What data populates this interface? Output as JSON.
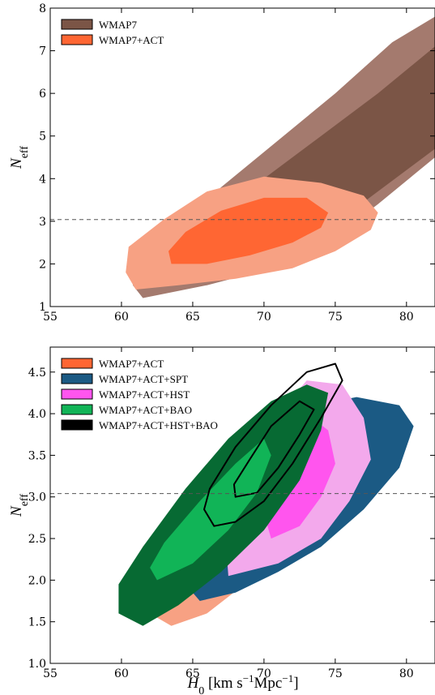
{
  "chart_data": [
    {
      "type": "contour",
      "xlabel": "",
      "ylabel": "N_eff",
      "xlim": [
        55,
        82
      ],
      "ylim": [
        1,
        8
      ],
      "x_ticks": [
        55,
        60,
        65,
        70,
        75,
        80
      ],
      "y_ticks": [
        1,
        2,
        3,
        4,
        5,
        6,
        7,
        8
      ],
      "reference_line": {
        "y": 3.04,
        "style": "dashed"
      },
      "legend": {
        "placement": "top-left"
      },
      "series": [
        {
          "name": "WMAP7",
          "color_inner": "#7b5546",
          "color_outer": "#a47a6e",
          "outer": [
            [
              61.5,
              1.2
            ],
            [
              63.0,
              1.3
            ],
            [
              66.0,
              1.5
            ],
            [
              70.0,
              1.85
            ],
            [
              74.0,
              2.4
            ],
            [
              78.0,
              3.4
            ],
            [
              82.0,
              4.5
            ],
            [
              82.0,
              7.8
            ],
            [
              79.0,
              7.2
            ],
            [
              75.0,
              6.0
            ],
            [
              71.0,
              4.9
            ],
            [
              67.0,
              3.8
            ],
            [
              63.5,
              2.8
            ],
            [
              61.0,
              1.9
            ],
            [
              60.8,
              1.5
            ]
          ],
          "inner": [
            [
              64.0,
              1.6
            ],
            [
              68.0,
              1.9
            ],
            [
              72.0,
              2.4
            ],
            [
              76.0,
              3.2
            ],
            [
              80.0,
              4.2
            ],
            [
              82.0,
              4.7
            ],
            [
              82.0,
              7.1
            ],
            [
              78.0,
              6.0
            ],
            [
              74.0,
              5.0
            ],
            [
              70.0,
              4.0
            ],
            [
              66.0,
              3.0
            ],
            [
              63.5,
              2.1
            ]
          ]
        },
        {
          "name": "WMAP7+ACT",
          "color_inner": "#ff6633",
          "color_outer": "#f7a183",
          "outer": [
            [
              61.0,
              1.4
            ],
            [
              64.0,
              1.5
            ],
            [
              68.0,
              1.65
            ],
            [
              72.0,
              1.9
            ],
            [
              75.0,
              2.3
            ],
            [
              77.5,
              2.8
            ],
            [
              78.0,
              3.2
            ],
            [
              77.0,
              3.6
            ],
            [
              74.0,
              3.9
            ],
            [
              70.0,
              4.05
            ],
            [
              66.0,
              3.7
            ],
            [
              63.0,
              3.05
            ],
            [
              60.5,
              2.4
            ],
            [
              60.3,
              1.8
            ]
          ],
          "inner": [
            [
              63.5,
              2.0
            ],
            [
              66.0,
              2.0
            ],
            [
              69.0,
              2.2
            ],
            [
              72.0,
              2.5
            ],
            [
              74.0,
              2.85
            ],
            [
              74.5,
              3.2
            ],
            [
              73.0,
              3.55
            ],
            [
              70.0,
              3.55
            ],
            [
              67.0,
              3.25
            ],
            [
              64.5,
              2.75
            ],
            [
              63.3,
              2.3
            ]
          ]
        }
      ]
    },
    {
      "type": "contour",
      "xlabel": "H_0 [km s^-1 Mpc^-1]",
      "ylabel": "N_eff",
      "xlim": [
        55,
        82
      ],
      "ylim": [
        1.0,
        4.8
      ],
      "x_ticks": [
        55,
        60,
        65,
        70,
        75,
        80
      ],
      "y_ticks": [
        1.0,
        1.5,
        2.0,
        2.5,
        3.0,
        3.5,
        4.0,
        4.5
      ],
      "reference_line": {
        "y": 3.04,
        "style": "dashed"
      },
      "legend": {
        "placement": "top-left"
      },
      "series": [
        {
          "name": "WMAP7+ACT",
          "color_inner": "#ff6633",
          "color_outer": "#f7a183",
          "outer": [
            [
              61.0,
              1.7
            ],
            [
              63.5,
              1.45
            ],
            [
              66.0,
              1.6
            ],
            [
              69.0,
              2.0
            ],
            [
              72.0,
              2.4
            ],
            [
              74.5,
              2.9
            ],
            [
              75.5,
              3.4
            ],
            [
              74.5,
              3.9
            ],
            [
              71.5,
              4.05
            ],
            [
              68.0,
              3.6
            ],
            [
              64.5,
              3.0
            ],
            [
              61.5,
              2.4
            ],
            [
              60.2,
              1.9
            ]
          ],
          "inner": null
        },
        {
          "name": "WMAP7+ACT+SPT",
          "color_inner": "#1b5a84",
          "color_outer": "#1b5a84",
          "outer": [
            [
              65.5,
              1.75
            ],
            [
              68.0,
              1.85
            ],
            [
              71.0,
              2.1
            ],
            [
              74.0,
              2.4
            ],
            [
              77.0,
              2.85
            ],
            [
              79.5,
              3.35
            ],
            [
              80.5,
              3.85
            ],
            [
              79.5,
              4.1
            ],
            [
              76.5,
              4.2
            ],
            [
              73.5,
              4.1
            ],
            [
              71.0,
              3.7
            ],
            [
              68.5,
              3.1
            ],
            [
              66.0,
              2.4
            ],
            [
              64.5,
              1.95
            ]
          ],
          "inner": null
        },
        {
          "name": "WMAP7+ACT+HST",
          "color_inner": "#ff55ee",
          "color_outer": "#f3a9ec",
          "outer": [
            [
              67.5,
              2.05
            ],
            [
              71.0,
              2.2
            ],
            [
              74.0,
              2.5
            ],
            [
              76.0,
              2.95
            ],
            [
              77.5,
              3.45
            ],
            [
              77.0,
              3.95
            ],
            [
              75.5,
              4.35
            ],
            [
              73.0,
              4.4
            ],
            [
              71.5,
              4.1
            ],
            [
              70.0,
              3.6
            ],
            [
              68.3,
              3.0
            ],
            [
              67.3,
              2.5
            ]
          ],
          "inner": [
            [
              70.5,
              2.5
            ],
            [
              72.5,
              2.65
            ],
            [
              74.0,
              3.0
            ],
            [
              75.0,
              3.4
            ],
            [
              74.5,
              3.8
            ],
            [
              73.0,
              4.0
            ],
            [
              71.5,
              3.75
            ],
            [
              70.5,
              3.25
            ],
            [
              70.0,
              2.8
            ]
          ]
        },
        {
          "name": "WMAP7+ACT+BAO",
          "color_inner": "#11b457",
          "color_outer": "#076a33",
          "outer": [
            [
              59.8,
              1.6
            ],
            [
              61.5,
              1.45
            ],
            [
              64.0,
              1.7
            ],
            [
              67.0,
              2.1
            ],
            [
              70.0,
              2.6
            ],
            [
              72.5,
              3.2
            ],
            [
              74.0,
              3.8
            ],
            [
              74.5,
              4.25
            ],
            [
              73.0,
              4.35
            ],
            [
              70.5,
              4.15
            ],
            [
              67.5,
              3.7
            ],
            [
              64.5,
              3.1
            ],
            [
              61.5,
              2.4
            ],
            [
              59.8,
              1.95
            ]
          ],
          "inner": [
            [
              62.5,
              2.0
            ],
            [
              65.0,
              2.2
            ],
            [
              67.5,
              2.6
            ],
            [
              69.5,
              3.05
            ],
            [
              70.5,
              3.5
            ],
            [
              70.0,
              3.7
            ],
            [
              68.0,
              3.4
            ],
            [
              65.5,
              2.95
            ],
            [
              63.0,
              2.45
            ],
            [
              62.0,
              2.15
            ]
          ]
        },
        {
          "name": "WMAP7+ACT+HST+BAO",
          "color_inner": "#000000",
          "color_outer": "#000000",
          "outer": [
            [
              66.5,
              2.65
            ],
            [
              68.0,
              2.7
            ],
            [
              70.0,
              2.95
            ],
            [
              72.0,
              3.4
            ],
            [
              74.0,
              3.95
            ],
            [
              75.5,
              4.4
            ],
            [
              75.0,
              4.6
            ],
            [
              73.0,
              4.5
            ],
            [
              70.5,
              4.1
            ],
            [
              68.0,
              3.6
            ],
            [
              66.2,
              3.1
            ],
            [
              65.8,
              2.85
            ]
          ],
          "inner": [
            [
              68.0,
              3.0
            ],
            [
              69.5,
              3.05
            ],
            [
              71.0,
              3.35
            ],
            [
              72.5,
              3.75
            ],
            [
              73.5,
              4.05
            ],
            [
              72.5,
              4.15
            ],
            [
              70.5,
              3.85
            ],
            [
              69.0,
              3.45
            ],
            [
              67.9,
              3.15
            ]
          ]
        }
      ]
    }
  ]
}
